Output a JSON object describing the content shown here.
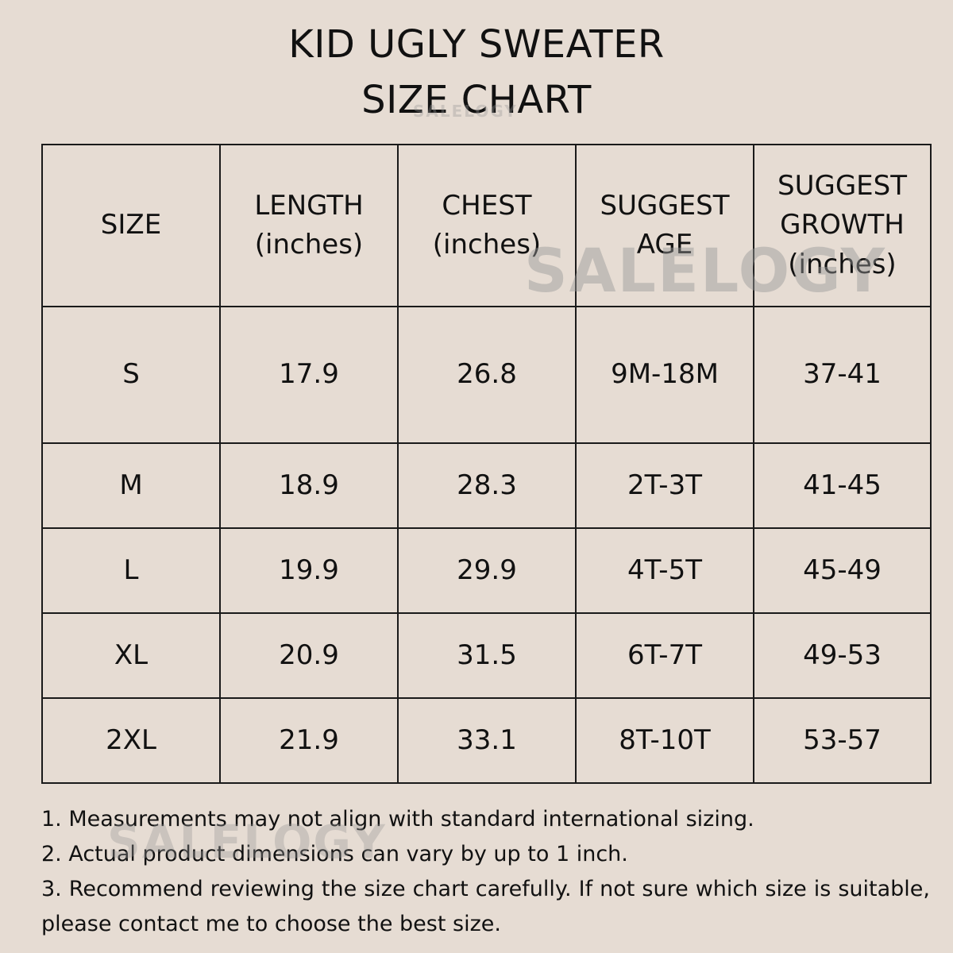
{
  "title": {
    "line1": "KID UGLY SWEATER",
    "line2": "SIZE CHART"
  },
  "watermark": "SALELOGY",
  "table": {
    "headers": [
      {
        "line1": "SIZE",
        "line2": "",
        "line3": ""
      },
      {
        "line1": "LENGTH",
        "line2": "(inches)",
        "line3": ""
      },
      {
        "line1": "CHEST",
        "line2": "(inches)",
        "line3": ""
      },
      {
        "line1": "SUGGEST",
        "line2": "AGE",
        "line3": ""
      },
      {
        "line1": "SUGGEST",
        "line2": "GROWTH",
        "line3": "(inches)"
      }
    ],
    "rows": [
      [
        "S",
        "17.9",
        "26.8",
        "9M-18M",
        "37-41"
      ],
      [
        "M",
        "18.9",
        "28.3",
        "2T-3T",
        "41-45"
      ],
      [
        "L",
        "19.9",
        "29.9",
        "4T-5T",
        "45-49"
      ],
      [
        "XL",
        "20.9",
        "31.5",
        "6T-7T",
        "49-53"
      ],
      [
        "2XL",
        "21.9",
        "33.1",
        "8T-10T",
        "53-57"
      ]
    ]
  },
  "notes": [
    "1. Measurements may not align with standard international sizing.",
    "2. Actual product dimensions can vary by up to 1 inch.",
    "3. Recommend reviewing the size chart carefully. If not sure which size is suitable, please contact me to choose the best size."
  ]
}
